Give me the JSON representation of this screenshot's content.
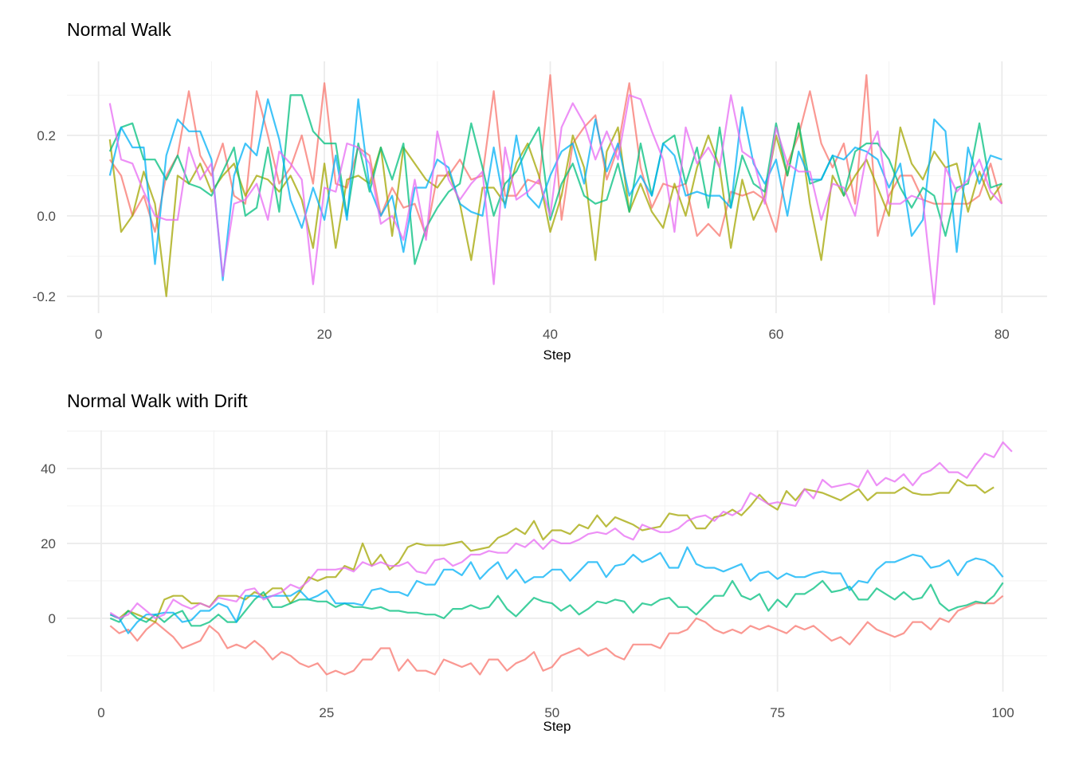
{
  "chart_data": [
    {
      "type": "line",
      "title": "Normal Walk",
      "xlabel": "Step",
      "ylabel": "",
      "xlim": [
        -2.8,
        84
      ],
      "ylim": [
        -0.242,
        0.384
      ],
      "xticks": [
        0,
        20,
        40,
        60,
        80
      ],
      "yticks": [
        -0.2,
        0.0,
        0.2
      ],
      "ytick_labels": [
        "-0.2",
        "0.0",
        "0.2"
      ],
      "grid": true,
      "legend": "none",
      "series": [
        {
          "color": "#F8766D",
          "values": [
            0.14,
            0.1,
            0.0,
            0.05,
            -0.04,
            0.1,
            0.15,
            0.31,
            0.15,
            0.1,
            0.18,
            0.05,
            0.03,
            0.31,
            0.2,
            0.08,
            0.12,
            0.2,
            0.08,
            0.33,
            0.08,
            0.07,
            0.17,
            0.15,
            0.0,
            0.07,
            0.02,
            0.03,
            -0.05,
            0.1,
            0.1,
            0.14,
            0.09,
            0.1,
            0.31,
            0.05,
            0.05,
            0.09,
            0.08,
            0.35,
            -0.01,
            0.18,
            0.22,
            0.25,
            0.09,
            0.17,
            0.33,
            0.12,
            0.02,
            0.08,
            0.07,
            0.08,
            -0.05,
            -0.02,
            -0.05,
            0.06,
            0.05,
            0.06,
            0.04,
            -0.04,
            0.13,
            0.2,
            0.31,
            0.18,
            0.12,
            0.18,
            0.03,
            0.35,
            -0.05,
            0.05,
            0.1,
            0.1,
            0.04,
            0.03,
            0.03,
            0.03,
            0.03,
            0.05,
            0.13,
            0.03
          ]
        },
        {
          "color": "#A3A500",
          "values": [
            0.19,
            -0.04,
            0.0,
            0.11,
            0.03,
            -0.2,
            0.1,
            0.08,
            0.13,
            0.06,
            0.1,
            0.13,
            0.05,
            0.1,
            0.09,
            0.06,
            0.1,
            0.04,
            -0.08,
            0.13,
            -0.08,
            0.09,
            0.1,
            0.08,
            0.17,
            -0.05,
            0.17,
            0.13,
            0.09,
            0.07,
            0.11,
            0.03,
            -0.11,
            0.07,
            0.07,
            0.03,
            0.13,
            0.18,
            0.1,
            -0.04,
            0.05,
            0.2,
            0.12,
            -0.11,
            0.16,
            0.22,
            0.01,
            0.08,
            0.01,
            -0.03,
            0.08,
            0.0,
            0.12,
            0.2,
            0.12,
            -0.08,
            0.09,
            -0.01,
            0.05,
            0.2,
            0.1,
            0.23,
            0.03,
            -0.11,
            0.1,
            0.05,
            0.1,
            0.14,
            0.07,
            0.0,
            0.22,
            0.13,
            0.09,
            0.16,
            0.12,
            0.13,
            0.01,
            0.11,
            0.04,
            0.08
          ]
        },
        {
          "color": "#00BF7D",
          "values": [
            0.16,
            0.22,
            0.23,
            0.14,
            0.14,
            0.09,
            0.15,
            0.08,
            0.07,
            0.05,
            0.11,
            0.17,
            0.0,
            0.02,
            0.17,
            0.01,
            0.3,
            0.3,
            0.21,
            0.18,
            0.18,
            0.0,
            0.18,
            0.06,
            0.17,
            0.09,
            0.18,
            -0.12,
            -0.03,
            0.02,
            0.06,
            0.08,
            0.23,
            0.12,
            0.0,
            0.08,
            0.11,
            0.17,
            0.22,
            -0.01,
            0.08,
            0.13,
            0.05,
            0.03,
            0.04,
            0.13,
            0.01,
            0.18,
            0.05,
            0.18,
            0.2,
            0.08,
            0.17,
            0.02,
            0.22,
            0.02,
            0.15,
            0.08,
            0.06,
            0.23,
            0.1,
            0.23,
            0.08,
            0.09,
            0.15,
            0.05,
            0.16,
            0.18,
            0.18,
            0.14,
            0.07,
            0.02,
            0.07,
            0.05,
            -0.05,
            0.07,
            0.08,
            0.23,
            0.07,
            0.08
          ]
        },
        {
          "color": "#00B0F6",
          "values": [
            0.1,
            0.22,
            0.17,
            0.17,
            -0.12,
            0.15,
            0.24,
            0.21,
            0.21,
            0.14,
            -0.16,
            0.1,
            0.18,
            0.15,
            0.29,
            0.19,
            0.04,
            -0.03,
            0.07,
            -0.01,
            0.15,
            -0.01,
            0.29,
            0.07,
            0.0,
            0.05,
            -0.09,
            0.07,
            0.07,
            0.14,
            0.12,
            0.03,
            0.01,
            0.0,
            0.17,
            0.02,
            0.2,
            0.05,
            0.02,
            0.1,
            0.16,
            0.18,
            0.08,
            0.24,
            0.11,
            0.18,
            0.05,
            0.1,
            0.05,
            0.18,
            0.15,
            0.05,
            0.06,
            0.05,
            0.05,
            0.02,
            0.27,
            0.13,
            0.08,
            0.14,
            0.0,
            0.16,
            0.09,
            0.09,
            0.15,
            0.14,
            0.17,
            0.16,
            0.14,
            0.07,
            0.13,
            -0.05,
            -0.01,
            0.24,
            0.21,
            -0.09,
            0.17,
            0.08,
            0.15,
            0.14
          ]
        },
        {
          "color": "#E76BF3",
          "values": [
            0.28,
            0.14,
            0.13,
            0.06,
            0.0,
            -0.01,
            -0.01,
            0.17,
            0.09,
            0.13,
            -0.15,
            0.03,
            0.04,
            0.08,
            -0.01,
            0.16,
            0.13,
            0.09,
            -0.17,
            0.07,
            0.06,
            0.18,
            0.17,
            0.13,
            -0.02,
            0.0,
            -0.06,
            0.09,
            -0.06,
            0.21,
            0.09,
            0.04,
            0.08,
            0.11,
            -0.17,
            0.17,
            0.04,
            0.06,
            0.09,
            0.0,
            0.22,
            0.28,
            0.23,
            0.14,
            0.21,
            0.14,
            0.3,
            0.29,
            0.21,
            0.14,
            -0.04,
            0.22,
            0.13,
            0.17,
            0.12,
            0.3,
            0.16,
            0.14,
            0.03,
            0.22,
            0.13,
            0.11,
            0.11,
            -0.01,
            0.08,
            0.07,
            0.0,
            0.15,
            0.21,
            0.03,
            0.03,
            0.05,
            0.04,
            -0.22,
            0.12,
            0.06,
            0.09,
            0.14,
            0.06,
            0.03
          ]
        }
      ]
    },
    {
      "type": "line",
      "title": "Normal Walk with Drift",
      "xlabel": "Step",
      "ylabel": "",
      "xlim": [
        -3.8,
        104.9
      ],
      "ylim": [
        -19.6,
        50.2
      ],
      "xticks": [
        0,
        25,
        50,
        75,
        100
      ],
      "yticks": [
        0,
        20,
        40
      ],
      "ytick_labels": [
        "0",
        "20",
        "40"
      ],
      "grid": true,
      "legend": "none",
      "series": [
        {
          "color": "#F8766D",
          "values": [
            -2,
            -4,
            -3,
            -6,
            -3,
            -1,
            -3,
            -5,
            -8,
            -7,
            -6,
            -2,
            -4,
            -8,
            -7,
            -8,
            -6,
            -8,
            -11,
            -9,
            -10,
            -12,
            -13,
            -12,
            -15,
            -14,
            -15,
            -14,
            -11,
            -11,
            -8,
            -8,
            -14,
            -11,
            -14,
            -14,
            -15,
            -11,
            -12,
            -13,
            -12,
            -15,
            -11,
            -11,
            -14,
            -12,
            -11,
            -9,
            -14,
            -13,
            -10,
            -9,
            -8,
            -10,
            -9,
            -8,
            -10,
            -11,
            -7,
            -7,
            -7,
            -8,
            -4,
            -4,
            -3,
            0,
            -1,
            -3,
            -4,
            -3,
            -4,
            -2,
            -3,
            -2,
            -3,
            -4,
            -2,
            -3,
            -2,
            -4,
            -6,
            -5,
            -7,
            -4,
            -1,
            -3,
            -4,
            -5,
            -4,
            -1,
            -1,
            -3,
            0,
            -1,
            2,
            3,
            4,
            4,
            4,
            6
          ]
        },
        {
          "color": "#A3A500",
          "values": [
            1,
            0,
            2,
            1,
            0,
            -1,
            5,
            6,
            6,
            4,
            4,
            3,
            6,
            6,
            6,
            5,
            7,
            6,
            8,
            8,
            4,
            7,
            11,
            10,
            11,
            11,
            14,
            13,
            20,
            14,
            17,
            13,
            15,
            19,
            20,
            19.5,
            19.5,
            19.5,
            20,
            20.5,
            18,
            18.5,
            19,
            21.5,
            22.5,
            24,
            22.5,
            26,
            21,
            23.5,
            23.5,
            22.5,
            25,
            24,
            27.5,
            24.5,
            27,
            26,
            25,
            23.5,
            24,
            24.5,
            28,
            27.5,
            27.5,
            24,
            24,
            27,
            27.5,
            29,
            27.5,
            30,
            33,
            30.5,
            29,
            34,
            31.5,
            34.5,
            34,
            33.5,
            32.5,
            31.5,
            33,
            34.5,
            31.5,
            33.5,
            33.5,
            33.5,
            35,
            33.5,
            33,
            33,
            33.5,
            33.5,
            37,
            35.5,
            35.5,
            33.5,
            35
          ]
        },
        {
          "color": "#00BF7D",
          "values": [
            0,
            -1,
            2,
            0,
            -1,
            1,
            -1,
            1,
            2,
            -2,
            -2,
            -1,
            1,
            -1,
            -1,
            2,
            5,
            7,
            3,
            3,
            4,
            5,
            5,
            4.5,
            4.5,
            3,
            4,
            3,
            3,
            2.5,
            3,
            2,
            2,
            1.5,
            1.5,
            1,
            1,
            0,
            2.5,
            2.5,
            3.5,
            2.5,
            3,
            6,
            2.5,
            0.5,
            3,
            5.5,
            4.5,
            4,
            2,
            3.5,
            1,
            2.5,
            4.5,
            4,
            5,
            4.5,
            1.5,
            4,
            3.5,
            5,
            5.5,
            3,
            3,
            1,
            3.5,
            6,
            6,
            10,
            6,
            5,
            6.5,
            2,
            5,
            3,
            6.5,
            6.5,
            8,
            10,
            7,
            7.5,
            8.5,
            5,
            5,
            8,
            6.5,
            5,
            7,
            5,
            5.5,
            9,
            4,
            2,
            3,
            3.5,
            4.5,
            4,
            6,
            9.5
          ]
        },
        {
          "color": "#00B0F6",
          "values": [
            1,
            0,
            -4,
            -1,
            1,
            1,
            1.5,
            1.5,
            -1,
            -0.5,
            2,
            2,
            4,
            3,
            -1,
            6,
            6,
            5.5,
            6,
            6,
            6,
            7.5,
            5,
            6,
            7.5,
            4,
            4,
            4,
            3.5,
            7.5,
            8,
            7,
            7,
            6,
            10,
            9,
            9,
            13,
            13,
            11.5,
            15,
            10.5,
            13,
            15,
            10.5,
            13,
            9.5,
            11,
            11,
            13,
            13,
            10,
            12.5,
            15,
            15,
            11,
            14,
            14.5,
            17,
            15,
            16,
            17.5,
            13.5,
            13.5,
            19,
            14.5,
            13.5,
            13.5,
            12.5,
            13.5,
            14.5,
            10,
            12,
            12.5,
            10.5,
            12,
            11,
            11,
            12,
            12.5,
            12,
            12,
            7.5,
            10,
            9.5,
            13,
            15,
            15,
            16,
            17,
            16.5,
            13.5,
            14,
            15.5,
            11.5,
            15,
            16,
            15.5,
            14,
            11
          ]
        },
        {
          "color": "#E76BF3",
          "values": [
            1.5,
            0,
            1,
            4,
            2,
            0,
            1,
            5,
            3.5,
            2.5,
            4,
            3,
            5.5,
            5,
            4.5,
            7.5,
            8,
            5,
            6,
            7,
            9,
            8,
            10,
            13,
            13,
            13,
            13.5,
            12.5,
            15,
            14,
            15,
            14,
            14,
            15,
            12.5,
            12,
            15.5,
            16,
            14,
            15,
            17,
            17,
            18,
            17.5,
            17.5,
            20,
            19,
            21,
            18.5,
            21,
            20,
            20,
            21,
            22.5,
            23,
            22.5,
            24,
            22,
            21,
            25,
            24,
            23,
            23,
            24,
            26,
            27,
            27.5,
            26,
            28.5,
            27.5,
            29,
            33.5,
            32,
            30.5,
            31,
            30.5,
            30,
            34.5,
            32,
            37,
            35,
            35.5,
            36,
            35,
            39.5,
            35.5,
            37.5,
            36.5,
            38.5,
            35.5,
            38.5,
            39.5,
            41.5,
            39,
            39,
            37.5,
            41,
            44,
            43,
            47,
            44.5
          ]
        }
      ]
    }
  ]
}
